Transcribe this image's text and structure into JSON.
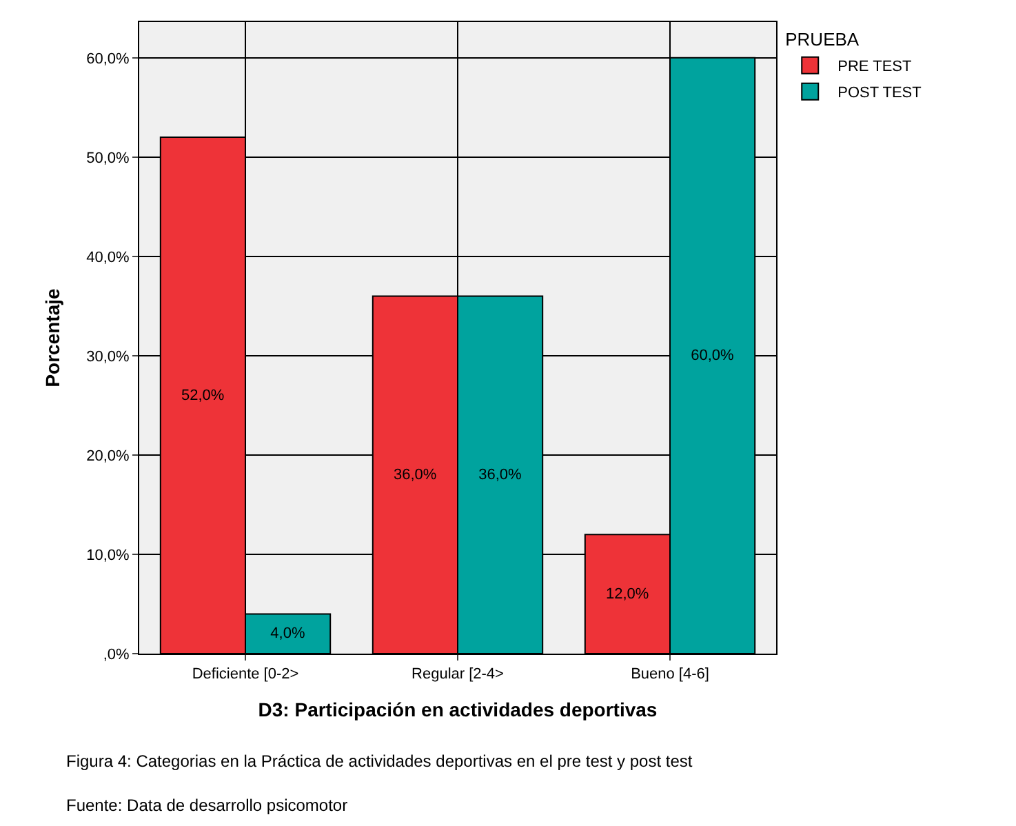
{
  "chart_data": {
    "type": "bar",
    "xlabel": "D3: Participación en actividades deportivas",
    "ylabel": "Porcentaje",
    "legend_title": "PRUEBA",
    "categories": [
      "Deficiente [0-2>",
      "Regular [2-4>",
      "Bueno [4-6]"
    ],
    "series": [
      {
        "name": "PRE TEST",
        "color": "#ee3338",
        "values": [
          52,
          36,
          12
        ],
        "value_labels": [
          "52,0%",
          "36,0%",
          "12,0%"
        ]
      },
      {
        "name": "POST TEST",
        "color": "#00a39e",
        "values": [
          4,
          36,
          60
        ],
        "value_labels": [
          "4,0%",
          "36,0%",
          "60,0%"
        ]
      }
    ],
    "ylim": [
      0,
      63.6
    ],
    "yticks": [
      {
        "value": 0,
        "label": ",0%"
      },
      {
        "value": 10,
        "label": "10,0%"
      },
      {
        "value": 20,
        "label": "20,0%"
      },
      {
        "value": 30,
        "label": "30,0%"
      },
      {
        "value": 40,
        "label": "40,0%"
      },
      {
        "value": 50,
        "label": "50,0%"
      },
      {
        "value": 60,
        "label": "60,0%"
      }
    ],
    "grid": true,
    "legend": "top right",
    "annotations": [
      "Figura 4: Categorias en la Práctica de actividades deportivas en el pre test y post test",
      "Fuente: Data de desarrollo psicomotor"
    ]
  }
}
